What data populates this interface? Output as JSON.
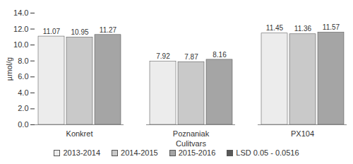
{
  "chart_data": {
    "type": "bar",
    "x_label": "Culitvars",
    "y_label": "µmol/g",
    "categories": [
      "Konkret",
      "Poznaniak",
      "PX104"
    ],
    "series": [
      {
        "name": "2013-2014",
        "color": "#ececec",
        "values": [
          11.07,
          7.92,
          11.45
        ]
      },
      {
        "name": "2014-2015",
        "color": "#c9c9c9",
        "values": [
          10.95,
          7.87,
          11.36
        ]
      },
      {
        "name": "2015-2016",
        "color": "#a5a5a5",
        "values": [
          11.27,
          8.16,
          11.57
        ]
      },
      {
        "name": "LSD 0.05 - 0.0516",
        "color": "#595959",
        "values": [
          null,
          null,
          null
        ]
      }
    ],
    "ylim": [
      0,
      14
    ],
    "yticks": [
      {
        "value": 0,
        "label": "0.0"
      },
      {
        "value": 2,
        "label": "2.0"
      },
      {
        "value": 4,
        "label": "4.0"
      },
      {
        "value": 6,
        "label": "6.0"
      },
      {
        "value": 8,
        "label": "8.0"
      },
      {
        "value": 10,
        "label": "10.0"
      },
      {
        "value": 12,
        "label": "12.0"
      },
      {
        "value": 14,
        "label": "14.0"
      }
    ],
    "grid": false,
    "data_labels": true,
    "legend": "bottom"
  }
}
